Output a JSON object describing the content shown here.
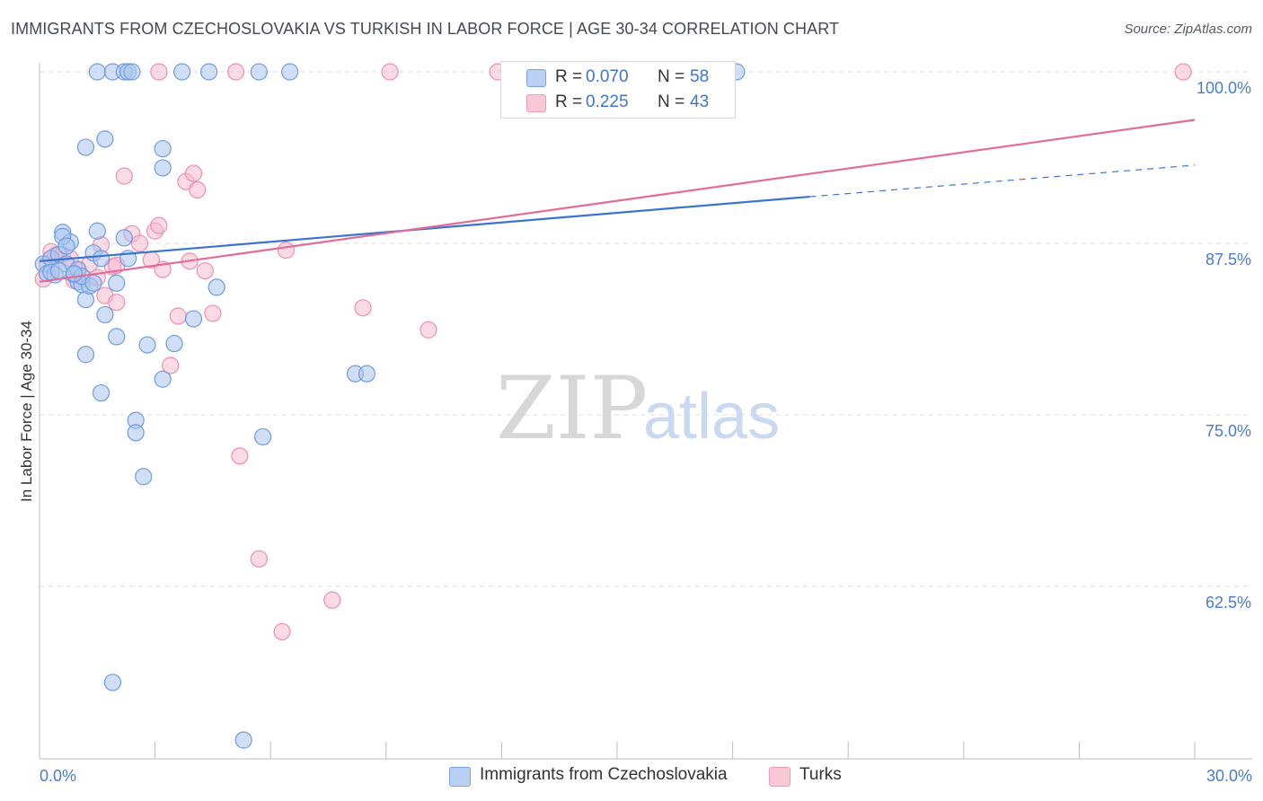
{
  "header": {
    "title": "IMMIGRANTS FROM CZECHOSLOVAKIA VS TURKISH IN LABOR FORCE | AGE 30-34 CORRELATION CHART",
    "source": "Source: ZipAtlas.com"
  },
  "watermark": {
    "zip": "ZIP",
    "atlas": "atlas"
  },
  "legend_top": {
    "rows": [
      {
        "r_label": "R =",
        "r_value": "0.070",
        "n_label": "N =",
        "n_value": "58"
      },
      {
        "r_label": "R =",
        "r_value": "0.225",
        "n_label": "N =",
        "n_value": "43"
      }
    ]
  },
  "colors": {
    "blue_fill": "#a9c4ee",
    "blue_stroke": "#6f9be0",
    "blue_line": "#3a74d0",
    "pink_fill": "#f6bccd",
    "pink_stroke": "#ee8fac",
    "pink_line": "#e36c96",
    "grid": "#dddddd",
    "tick_text": "#4a7bd0"
  },
  "chart_data": {
    "type": "scatter",
    "title": "IMMIGRANTS FROM CZECHOSLOVAKIA VS TURKISH IN LABOR FORCE | AGE 30-34 CORRELATION CHART",
    "xlabel": "",
    "ylabel": "In Labor Force | Age 30-34",
    "xlim": [
      0,
      30
    ],
    "ylim": [
      50,
      101
    ],
    "x_tick_labels": [
      {
        "value": 0,
        "label": "0.0%"
      },
      {
        "value": 30,
        "label": "30.0%"
      }
    ],
    "y_tick_labels": [
      {
        "value": 100,
        "label": "100.0%"
      },
      {
        "value": 87.5,
        "label": "87.5%"
      },
      {
        "value": 75,
        "label": "75.0%"
      },
      {
        "value": 62.5,
        "label": "62.5%"
      }
    ],
    "series": [
      {
        "name": "Immigrants from Czechoslovakia",
        "r": 0.07,
        "n": 58,
        "trend": {
          "x0": 0,
          "y0": 86.2,
          "x1": 20,
          "y1": 90.9,
          "dashed_to_x": 30,
          "dashed_to_y": 93.2
        },
        "points": [
          [
            0.1,
            86.0
          ],
          [
            0.2,
            85.3
          ],
          [
            0.3,
            86.4
          ],
          [
            0.4,
            85.2
          ],
          [
            0.5,
            86.7
          ],
          [
            0.6,
            88.3
          ],
          [
            0.7,
            86.0
          ],
          [
            0.8,
            87.6
          ],
          [
            0.9,
            85.2
          ],
          [
            1.0,
            84.7
          ],
          [
            1.1,
            84.5
          ],
          [
            1.2,
            83.4
          ],
          [
            1.3,
            84.4
          ],
          [
            1.4,
            86.8
          ],
          [
            1.5,
            88.4
          ],
          [
            1.6,
            86.4
          ],
          [
            2.0,
            84.6
          ],
          [
            2.2,
            87.9
          ],
          [
            0.6,
            88.0
          ],
          [
            0.7,
            87.3
          ],
          [
            0.3,
            85.4
          ],
          [
            0.5,
            85.5
          ],
          [
            1.0,
            85.6
          ],
          [
            1.7,
            82.3
          ],
          [
            2.0,
            80.7
          ],
          [
            1.2,
            79.4
          ],
          [
            1.6,
            76.6
          ],
          [
            2.5,
            74.6
          ],
          [
            2.5,
            73.7
          ],
          [
            2.7,
            70.5
          ],
          [
            3.2,
            77.6
          ],
          [
            3.5,
            80.2
          ],
          [
            4.6,
            84.3
          ],
          [
            3.2,
            94.4
          ],
          [
            3.2,
            93.0
          ],
          [
            1.2,
            94.5
          ],
          [
            1.7,
            95.1
          ],
          [
            1.5,
            100.0
          ],
          [
            1.9,
            100.0
          ],
          [
            2.2,
            100.0
          ],
          [
            2.3,
            100.0
          ],
          [
            2.4,
            100.0
          ],
          [
            3.7,
            100.0
          ],
          [
            4.4,
            100.0
          ],
          [
            5.7,
            100.0
          ],
          [
            6.5,
            100.0
          ],
          [
            18.1,
            100.0
          ],
          [
            5.8,
            73.4
          ],
          [
            8.2,
            78.0
          ],
          [
            8.5,
            78.0
          ],
          [
            1.9,
            55.5
          ],
          [
            5.3,
            51.3
          ],
          [
            1.1,
            85.1
          ],
          [
            0.9,
            85.3
          ],
          [
            2.3,
            86.4
          ],
          [
            1.4,
            84.6
          ],
          [
            2.8,
            80.1
          ],
          [
            4.0,
            82.0
          ]
        ]
      },
      {
        "name": "Turks",
        "r": 0.225,
        "n": 43,
        "trend": {
          "x0": 0,
          "y0": 84.7,
          "x1": 30,
          "y1": 96.5
        },
        "points": [
          [
            0.1,
            84.9
          ],
          [
            0.2,
            86.0
          ],
          [
            0.3,
            86.9
          ],
          [
            0.4,
            86.6
          ],
          [
            0.6,
            86.7
          ],
          [
            0.8,
            86.4
          ],
          [
            1.0,
            85.5
          ],
          [
            1.3,
            86.0
          ],
          [
            1.6,
            87.4
          ],
          [
            1.9,
            85.8
          ],
          [
            2.0,
            85.9
          ],
          [
            2.4,
            88.2
          ],
          [
            2.6,
            87.5
          ],
          [
            3.0,
            88.4
          ],
          [
            3.1,
            88.8
          ],
          [
            3.2,
            85.6
          ],
          [
            3.9,
            86.2
          ],
          [
            4.3,
            85.5
          ],
          [
            2.2,
            92.4
          ],
          [
            3.8,
            92.0
          ],
          [
            4.1,
            91.4
          ],
          [
            4.0,
            92.6
          ],
          [
            1.7,
            83.7
          ],
          [
            2.0,
            83.2
          ],
          [
            3.6,
            82.2
          ],
          [
            4.5,
            82.4
          ],
          [
            8.4,
            82.8
          ],
          [
            10.1,
            81.2
          ],
          [
            3.4,
            78.6
          ],
          [
            5.2,
            72.0
          ],
          [
            5.7,
            64.5
          ],
          [
            6.3,
            59.2
          ],
          [
            7.6,
            61.5
          ],
          [
            6.4,
            87.0
          ],
          [
            3.1,
            100.0
          ],
          [
            5.1,
            100.0
          ],
          [
            9.1,
            100.0
          ],
          [
            11.9,
            100.0
          ],
          [
            12.2,
            100.0
          ],
          [
            29.7,
            100.0
          ],
          [
            1.5,
            85.0
          ],
          [
            0.9,
            84.8
          ],
          [
            2.9,
            86.3
          ]
        ]
      }
    ]
  },
  "legend_bottom": {
    "items": [
      {
        "label": "Immigrants from Czechoslovakia"
      },
      {
        "label": "Turks"
      }
    ]
  }
}
